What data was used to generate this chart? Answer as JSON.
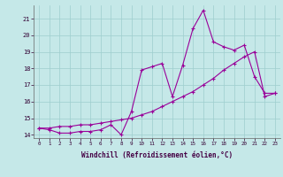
{
  "xlabel": "Windchill (Refroidissement éolien,°C)",
  "x": [
    0,
    1,
    2,
    3,
    4,
    5,
    6,
    7,
    8,
    9,
    10,
    11,
    12,
    13,
    14,
    15,
    16,
    17,
    18,
    19,
    20,
    21,
    22,
    23
  ],
  "line1": [
    14.4,
    14.3,
    14.1,
    14.1,
    14.2,
    14.2,
    14.3,
    14.6,
    14.0,
    15.4,
    17.9,
    18.1,
    18.3,
    16.3,
    18.2,
    20.4,
    21.5,
    19.6,
    19.3,
    19.1,
    19.4,
    17.5,
    16.5,
    16.5
  ],
  "line2": [
    14.4,
    14.4,
    14.5,
    14.5,
    14.6,
    14.6,
    14.7,
    14.8,
    14.9,
    15.0,
    15.2,
    15.4,
    15.7,
    16.0,
    16.3,
    16.6,
    17.0,
    17.4,
    17.9,
    18.3,
    18.7,
    19.0,
    16.3,
    16.5
  ],
  "line_color": "#990099",
  "bg_color": "#c5e8e8",
  "grid_color": "#9ecece",
  "ylim": [
    13.8,
    21.8
  ],
  "xlim": [
    -0.5,
    23.5
  ],
  "yticks": [
    14,
    15,
    16,
    17,
    18,
    19,
    20,
    21
  ],
  "xticks": [
    0,
    1,
    2,
    3,
    4,
    5,
    6,
    7,
    8,
    9,
    10,
    11,
    12,
    13,
    14,
    15,
    16,
    17,
    18,
    19,
    20,
    21,
    22,
    23
  ]
}
